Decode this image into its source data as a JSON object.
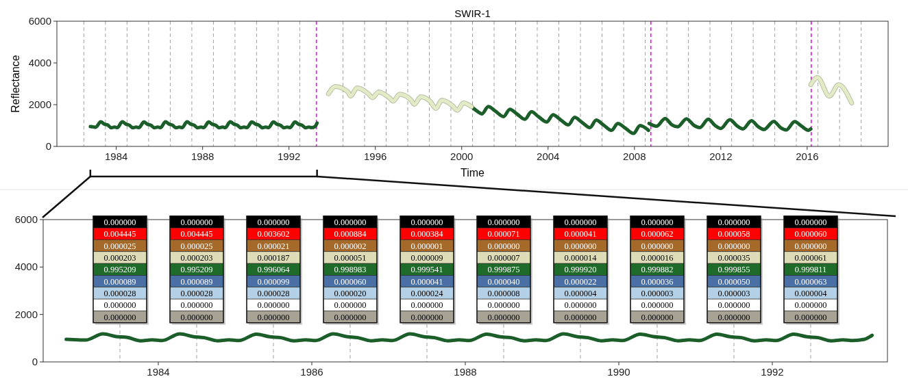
{
  "chart_data": [
    {
      "type": "line",
      "title": "SWIR-1",
      "xlabel": "Time",
      "ylabel": "Reflectance",
      "xlim": [
        1981.25,
        2019.75
      ],
      "ylim": [
        0,
        6000
      ],
      "xticks": [
        1984,
        1988,
        1992,
        1996,
        2000,
        2004,
        2008,
        2012,
        2016
      ],
      "yticks": [
        0,
        2000,
        4000,
        6000
      ],
      "grid": false,
      "line_style": "solid",
      "marker": "none",
      "series": [
        {
          "color": "#1b5e2a",
          "x": [
            1982.8,
            1982.95,
            1983.05,
            1983.28,
            1983.45,
            1983.6,
            1983.77,
            1983.92,
            1984.05,
            1984.28,
            1984.45,
            1984.6,
            1984.77,
            1984.92,
            1985.05,
            1985.28,
            1985.45,
            1985.6,
            1985.77,
            1985.92,
            1986.05,
            1986.28,
            1986.45,
            1986.6,
            1986.77,
            1986.92,
            1987.05,
            1987.28,
            1987.45,
            1987.6,
            1987.77,
            1987.92,
            1988.05,
            1988.28,
            1988.45,
            1988.6,
            1988.77,
            1988.92,
            1989.05,
            1989.28,
            1989.45,
            1989.6,
            1989.77,
            1989.92,
            1990.05,
            1990.28,
            1990.45,
            1990.6,
            1990.77,
            1990.92,
            1991.05,
            1991.28,
            1991.45,
            1991.6,
            1991.77,
            1991.92,
            1992.05,
            1992.28,
            1992.45,
            1992.6,
            1992.77,
            1992.92,
            1993.05,
            1993.2,
            1993.3,
            1993.31,
            2000.45,
            2000.7,
            2000.94,
            2001.23,
            2001.55,
            2001.94,
            2002.23,
            2002.55,
            2002.93,
            2003.23,
            2003.55,
            2003.94,
            2004.23,
            2004.55,
            2004.94,
            2005.23,
            2005.55,
            2005.94,
            2006.23,
            2006.55,
            2006.94,
            2007.23,
            2007.55,
            2007.96,
            2008.26,
            2008.65,
            2008.66,
            2008.68,
            2009.03,
            2009.42,
            2009.74,
            2010.0,
            2010.41,
            2010.77,
            2011.03,
            2011.42,
            2011.74,
            2012.0,
            2012.42,
            2012.77,
            2013.03,
            2013.42,
            2013.74,
            2014.0,
            2014.45,
            2014.77,
            2015.03,
            2015.42,
            2015.74,
            2016.06,
            2016.17
          ],
          "values": [
            950,
            930,
            920,
            1180,
            1070,
            1030,
            890,
            930,
            900,
            1180,
            1070,
            1020,
            890,
            930,
            900,
            1170,
            1060,
            1020,
            890,
            930,
            900,
            1180,
            1070,
            1020,
            890,
            930,
            900,
            1180,
            1070,
            1020,
            890,
            930,
            900,
            1170,
            1060,
            1020,
            890,
            930,
            900,
            1180,
            1070,
            1020,
            890,
            930,
            900,
            1170,
            1070,
            1020,
            890,
            930,
            900,
            1170,
            1060,
            1020,
            890,
            930,
            900,
            1170,
            1060,
            1020,
            890,
            930,
            900,
            950,
            1120,
            null,
            1910,
            1700,
            1560,
            1910,
            1700,
            1430,
            1780,
            1560,
            1300,
            1660,
            1430,
            1170,
            1520,
            1300,
            1030,
            1390,
            1170,
            900,
            1260,
            1040,
            770,
            1100,
            900,
            620,
            1000,
            770,
            null,
            1100,
            970,
            1340,
            1030,
            940,
            1320,
            1000,
            900,
            1300,
            1000,
            860,
            1280,
            970,
            840,
            1230,
            940,
            810,
            1200,
            900,
            790,
            1190,
            970,
            770,
            840
          ]
        },
        {
          "color": "#e2ebc6",
          "x": [
            1993.83,
            1994.15,
            1994.73,
            1994.85,
            1995.15,
            1995.68,
            1995.87,
            1996.15,
            1996.64,
            1996.83,
            1997.12,
            1997.63,
            1997.81,
            1998.1,
            1998.55,
            1998.8,
            1999.08,
            1999.57,
            1999.8,
            2000.08,
            2000.45,
            2000.46,
            2016.17,
            2016.48,
            2017.03,
            2017.46,
            2018.06
          ],
          "values": [
            2520,
            2870,
            2610,
            2410,
            2800,
            2520,
            2340,
            2610,
            2340,
            2170,
            2500,
            2250,
            2020,
            2380,
            2150,
            1820,
            2210,
            1950,
            1730,
            2080,
            1910,
            null,
            2960,
            3300,
            2410,
            2960,
            2080
          ]
        }
      ],
      "ref_lines": [
        {
          "axis": "x",
          "value": 1993.27,
          "color": "#ff00ff",
          "line_style": "dashed"
        },
        {
          "axis": "x",
          "value": 2008.76,
          "color": "#ff00ff",
          "line_style": "dashed"
        },
        {
          "axis": "x",
          "value": 2016.19,
          "color": "#ff00ff",
          "line_style": "dashed"
        },
        {
          "axis": "x",
          "value": 1982.5,
          "color": "#a0a0a0",
          "line_style": "dashed"
        },
        {
          "axis": "x",
          "value": 1983.5,
          "color": "#a0a0a0",
          "line_style": "dashed"
        },
        {
          "axis": "x",
          "value": 1984.5,
          "color": "#a0a0a0",
          "line_style": "dashed"
        },
        {
          "axis": "x",
          "value": 1985.5,
          "color": "#a0a0a0",
          "line_style": "dashed"
        },
        {
          "axis": "x",
          "value": 1986.5,
          "color": "#a0a0a0",
          "line_style": "dashed"
        },
        {
          "axis": "x",
          "value": 1987.5,
          "color": "#a0a0a0",
          "line_style": "dashed"
        },
        {
          "axis": "x",
          "value": 1988.5,
          "color": "#a0a0a0",
          "line_style": "dashed"
        },
        {
          "axis": "x",
          "value": 1989.5,
          "color": "#a0a0a0",
          "line_style": "dashed"
        },
        {
          "axis": "x",
          "value": 1990.5,
          "color": "#a0a0a0",
          "line_style": "dashed"
        },
        {
          "axis": "x",
          "value": 1991.5,
          "color": "#a0a0a0",
          "line_style": "dashed"
        },
        {
          "axis": "x",
          "value": 1992.5,
          "color": "#a0a0a0",
          "line_style": "dashed"
        },
        {
          "axis": "x",
          "value": 1994.5,
          "color": "#a0a0a0",
          "line_style": "dashed"
        },
        {
          "axis": "x",
          "value": 1995.5,
          "color": "#a0a0a0",
          "line_style": "dashed"
        },
        {
          "axis": "x",
          "value": 1996.5,
          "color": "#a0a0a0",
          "line_style": "dashed"
        },
        {
          "axis": "x",
          "value": 1997.5,
          "color": "#a0a0a0",
          "line_style": "dashed"
        },
        {
          "axis": "x",
          "value": 1998.5,
          "color": "#a0a0a0",
          "line_style": "dashed"
        },
        {
          "axis": "x",
          "value": 1999.5,
          "color": "#a0a0a0",
          "line_style": "dashed"
        },
        {
          "axis": "x",
          "value": 2000.5,
          "color": "#a0a0a0",
          "line_style": "dashed"
        },
        {
          "axis": "x",
          "value": 2001.5,
          "color": "#a0a0a0",
          "line_style": "dashed"
        },
        {
          "axis": "x",
          "value": 2002.5,
          "color": "#a0a0a0",
          "line_style": "dashed"
        },
        {
          "axis": "x",
          "value": 2003.5,
          "color": "#a0a0a0",
          "line_style": "dashed"
        },
        {
          "axis": "x",
          "value": 2004.5,
          "color": "#a0a0a0",
          "line_style": "dashed"
        },
        {
          "axis": "x",
          "value": 2005.5,
          "color": "#a0a0a0",
          "line_style": "dashed"
        },
        {
          "axis": "x",
          "value": 2006.5,
          "color": "#a0a0a0",
          "line_style": "dashed"
        },
        {
          "axis": "x",
          "value": 2007.5,
          "color": "#a0a0a0",
          "line_style": "dashed"
        },
        {
          "axis": "x",
          "value": 2008.5,
          "color": "#a0a0a0",
          "line_style": "dashed"
        },
        {
          "axis": "x",
          "value": 2009.5,
          "color": "#a0a0a0",
          "line_style": "dashed"
        },
        {
          "axis": "x",
          "value": 2010.5,
          "color": "#a0a0a0",
          "line_style": "dashed"
        },
        {
          "axis": "x",
          "value": 2011.5,
          "color": "#a0a0a0",
          "line_style": "dashed"
        },
        {
          "axis": "x",
          "value": 2012.5,
          "color": "#a0a0a0",
          "line_style": "dashed"
        },
        {
          "axis": "x",
          "value": 2013.5,
          "color": "#a0a0a0",
          "line_style": "dashed"
        },
        {
          "axis": "x",
          "value": 2014.5,
          "color": "#a0a0a0",
          "line_style": "dashed"
        },
        {
          "axis": "x",
          "value": 2015.5,
          "color": "#a0a0a0",
          "line_style": "dashed"
        },
        {
          "axis": "x",
          "value": 2016.5,
          "color": "#a0a0a0",
          "line_style": "dashed"
        },
        {
          "axis": "x",
          "value": 2017.5,
          "color": "#a0a0a0",
          "line_style": "dashed"
        },
        {
          "axis": "x",
          "value": 2018.5,
          "color": "#a0a0a0",
          "line_style": "dashed"
        }
      ]
    },
    {
      "type": "line",
      "xlim": [
        1982.5,
        1993.5
      ],
      "ylim": [
        0,
        6000
      ],
      "xticks": [
        1984,
        1986,
        1988,
        1990,
        1992
      ],
      "yticks": [
        0,
        2000,
        4000,
        6000
      ],
      "grid": false,
      "line_style": "solid",
      "marker": "none",
      "series": [
        {
          "color": "#1b5e2a",
          "x": [
            1982.8,
            1982.95,
            1983.05,
            1983.28,
            1983.45,
            1983.6,
            1983.77,
            1983.92,
            1984.05,
            1984.28,
            1984.45,
            1984.6,
            1984.77,
            1984.92,
            1985.05,
            1985.28,
            1985.45,
            1985.6,
            1985.77,
            1985.92,
            1986.05,
            1986.28,
            1986.45,
            1986.6,
            1986.77,
            1986.92,
            1987.05,
            1987.28,
            1987.45,
            1987.6,
            1987.77,
            1987.92,
            1988.05,
            1988.28,
            1988.45,
            1988.6,
            1988.77,
            1988.92,
            1989.05,
            1989.28,
            1989.45,
            1989.6,
            1989.77,
            1989.92,
            1990.05,
            1990.28,
            1990.45,
            1990.6,
            1990.77,
            1990.92,
            1991.05,
            1991.28,
            1991.45,
            1991.6,
            1991.77,
            1991.92,
            1992.05,
            1992.28,
            1992.45,
            1992.6,
            1992.77,
            1992.92,
            1993.05,
            1993.2,
            1993.3
          ],
          "values": [
            950,
            930,
            920,
            1180,
            1070,
            1030,
            890,
            930,
            900,
            1180,
            1070,
            1020,
            890,
            930,
            900,
            1170,
            1060,
            1020,
            890,
            930,
            900,
            1180,
            1070,
            1020,
            890,
            930,
            900,
            1180,
            1070,
            1020,
            890,
            930,
            900,
            1170,
            1060,
            1020,
            890,
            930,
            900,
            1180,
            1070,
            1020,
            890,
            930,
            900,
            1170,
            1070,
            1020,
            890,
            930,
            900,
            1170,
            1060,
            1020,
            890,
            930,
            900,
            1170,
            1060,
            1020,
            890,
            930,
            900,
            950,
            1120
          ]
        }
      ],
      "ref_lines": [
        {
          "axis": "x",
          "value": 1983.5,
          "color": "#a0a0a0",
          "line_style": "dashed"
        },
        {
          "axis": "x",
          "value": 1984.5,
          "color": "#a0a0a0",
          "line_style": "dashed"
        },
        {
          "axis": "x",
          "value": 1985.5,
          "color": "#a0a0a0",
          "line_style": "dashed"
        },
        {
          "axis": "x",
          "value": 1986.5,
          "color": "#a0a0a0",
          "line_style": "dashed"
        },
        {
          "axis": "x",
          "value": 1987.5,
          "color": "#a0a0a0",
          "line_style": "dashed"
        },
        {
          "axis": "x",
          "value": 1988.5,
          "color": "#a0a0a0",
          "line_style": "dashed"
        },
        {
          "axis": "x",
          "value": 1989.5,
          "color": "#a0a0a0",
          "line_style": "dashed"
        },
        {
          "axis": "x",
          "value": 1990.5,
          "color": "#a0a0a0",
          "line_style": "dashed"
        },
        {
          "axis": "x",
          "value": 1991.5,
          "color": "#a0a0a0",
          "line_style": "dashed"
        },
        {
          "axis": "x",
          "value": 1992.5,
          "color": "#a0a0a0",
          "line_style": "dashed"
        }
      ],
      "annotations": [
        {
          "text": "0.000000",
          "x": 1983.5,
          "y": 5900
        },
        {
          "text": "0.004445",
          "x": 1983.5,
          "y": 5400
        },
        {
          "text": "0.000025",
          "x": 1983.5,
          "y": 4900
        },
        {
          "text": "0.000203",
          "x": 1983.5,
          "y": 4400
        },
        {
          "text": "0.995209",
          "x": 1983.5,
          "y": 3900
        },
        {
          "text": "0.000089",
          "x": 1983.5,
          "y": 3400
        },
        {
          "text": "0.000028",
          "x": 1983.5,
          "y": 2900
        },
        {
          "text": "0.000000",
          "x": 1983.5,
          "y": 2400
        },
        {
          "text": "0.000000",
          "x": 1983.5,
          "y": 1900
        },
        {
          "text": "0.000000",
          "x": 1984.5,
          "y": 5900
        },
        {
          "text": "0.004445",
          "x": 1984.5,
          "y": 5400
        },
        {
          "text": "0.000025",
          "x": 1984.5,
          "y": 4900
        },
        {
          "text": "0.000203",
          "x": 1984.5,
          "y": 4400
        },
        {
          "text": "0.995209",
          "x": 1984.5,
          "y": 3900
        },
        {
          "text": "0.000089",
          "x": 1984.5,
          "y": 3400
        },
        {
          "text": "0.000028",
          "x": 1984.5,
          "y": 2900
        },
        {
          "text": "0.000000",
          "x": 1984.5,
          "y": 2400
        },
        {
          "text": "0.000000",
          "x": 1984.5,
          "y": 1900
        },
        {
          "text": "0.000000",
          "x": 1985.5,
          "y": 5900
        },
        {
          "text": "0.003602",
          "x": 1985.5,
          "y": 5400
        },
        {
          "text": "0.000021",
          "x": 1985.5,
          "y": 4900
        },
        {
          "text": "0.000187",
          "x": 1985.5,
          "y": 4400
        },
        {
          "text": "0.996064",
          "x": 1985.5,
          "y": 3900
        },
        {
          "text": "0.000099",
          "x": 1985.5,
          "y": 3400
        },
        {
          "text": "0.000028",
          "x": 1985.5,
          "y": 2900
        },
        {
          "text": "0.000000",
          "x": 1985.5,
          "y": 2400
        },
        {
          "text": "0.000000",
          "x": 1985.5,
          "y": 1900
        },
        {
          "text": "0.000000",
          "x": 1986.5,
          "y": 5900
        },
        {
          "text": "0.000884",
          "x": 1986.5,
          "y": 5400
        },
        {
          "text": "0.000002",
          "x": 1986.5,
          "y": 4900
        },
        {
          "text": "0.000051",
          "x": 1986.5,
          "y": 4400
        },
        {
          "text": "0.998983",
          "x": 1986.5,
          "y": 3900
        },
        {
          "text": "0.000060",
          "x": 1986.5,
          "y": 3400
        },
        {
          "text": "0.000020",
          "x": 1986.5,
          "y": 2900
        },
        {
          "text": "0.000000",
          "x": 1986.5,
          "y": 2400
        },
        {
          "text": "0.000000",
          "x": 1986.5,
          "y": 1900
        },
        {
          "text": "0.000000",
          "x": 1987.5,
          "y": 5900
        },
        {
          "text": "0.000384",
          "x": 1987.5,
          "y": 5400
        },
        {
          "text": "0.000001",
          "x": 1987.5,
          "y": 4900
        },
        {
          "text": "0.000009",
          "x": 1987.5,
          "y": 4400
        },
        {
          "text": "0.999541",
          "x": 1987.5,
          "y": 3900
        },
        {
          "text": "0.000041",
          "x": 1987.5,
          "y": 3400
        },
        {
          "text": "0.000024",
          "x": 1987.5,
          "y": 2900
        },
        {
          "text": "0.000000",
          "x": 1987.5,
          "y": 2400
        },
        {
          "text": "0.000000",
          "x": 1987.5,
          "y": 1900
        },
        {
          "text": "0.000000",
          "x": 1988.5,
          "y": 5900
        },
        {
          "text": "0.000071",
          "x": 1988.5,
          "y": 5400
        },
        {
          "text": "0.000000",
          "x": 1988.5,
          "y": 4900
        },
        {
          "text": "0.000007",
          "x": 1988.5,
          "y": 4400
        },
        {
          "text": "0.999875",
          "x": 1988.5,
          "y": 3900
        },
        {
          "text": "0.000040",
          "x": 1988.5,
          "y": 3400
        },
        {
          "text": "0.000008",
          "x": 1988.5,
          "y": 2900
        },
        {
          "text": "0.000000",
          "x": 1988.5,
          "y": 2400
        },
        {
          "text": "0.000000",
          "x": 1988.5,
          "y": 1900
        },
        {
          "text": "0.000000",
          "x": 1989.5,
          "y": 5900
        },
        {
          "text": "0.000041",
          "x": 1989.5,
          "y": 5400
        },
        {
          "text": "0.000000",
          "x": 1989.5,
          "y": 4900
        },
        {
          "text": "0.000014",
          "x": 1989.5,
          "y": 4400
        },
        {
          "text": "0.999920",
          "x": 1989.5,
          "y": 3900
        },
        {
          "text": "0.000022",
          "x": 1989.5,
          "y": 3400
        },
        {
          "text": "0.000004",
          "x": 1989.5,
          "y": 2900
        },
        {
          "text": "0.000000",
          "x": 1989.5,
          "y": 2400
        },
        {
          "text": "0.000000",
          "x": 1989.5,
          "y": 1900
        },
        {
          "text": "0.000000",
          "x": 1990.5,
          "y": 5900
        },
        {
          "text": "0.000062",
          "x": 1990.5,
          "y": 5400
        },
        {
          "text": "0.000000",
          "x": 1990.5,
          "y": 4900
        },
        {
          "text": "0.000016",
          "x": 1990.5,
          "y": 4400
        },
        {
          "text": "0.999882",
          "x": 1990.5,
          "y": 3900
        },
        {
          "text": "0.000036",
          "x": 1990.5,
          "y": 3400
        },
        {
          "text": "0.000003",
          "x": 1990.5,
          "y": 2900
        },
        {
          "text": "0.000000",
          "x": 1990.5,
          "y": 2400
        },
        {
          "text": "0.000000",
          "x": 1990.5,
          "y": 1900
        },
        {
          "text": "0.000000",
          "x": 1991.5,
          "y": 5900
        },
        {
          "text": "0.000058",
          "x": 1991.5,
          "y": 5400
        },
        {
          "text": "0.000000",
          "x": 1991.5,
          "y": 4900
        },
        {
          "text": "0.000035",
          "x": 1991.5,
          "y": 4400
        },
        {
          "text": "0.999855",
          "x": 1991.5,
          "y": 3900
        },
        {
          "text": "0.000050",
          "x": 1991.5,
          "y": 3400
        },
        {
          "text": "0.000003",
          "x": 1991.5,
          "y": 2900
        },
        {
          "text": "0.000000",
          "x": 1991.5,
          "y": 2400
        },
        {
          "text": "0.000000",
          "x": 1991.5,
          "y": 1900
        },
        {
          "text": "0.000000",
          "x": 1992.5,
          "y": 5900
        },
        {
          "text": "0.000060",
          "x": 1992.5,
          "y": 5400
        },
        {
          "text": "0.000000",
          "x": 1992.5,
          "y": 4900
        },
        {
          "text": "0.000061",
          "x": 1992.5,
          "y": 4400
        },
        {
          "text": "0.999811",
          "x": 1992.5,
          "y": 3900
        },
        {
          "text": "0.000063",
          "x": 1992.5,
          "y": 3400
        },
        {
          "text": "0.000004",
          "x": 1992.5,
          "y": 2900
        },
        {
          "text": "0.000000",
          "x": 1992.5,
          "y": 2400
        },
        {
          "text": "0.000000",
          "x": 1992.5,
          "y": 1900
        }
      ]
    }
  ]
}
